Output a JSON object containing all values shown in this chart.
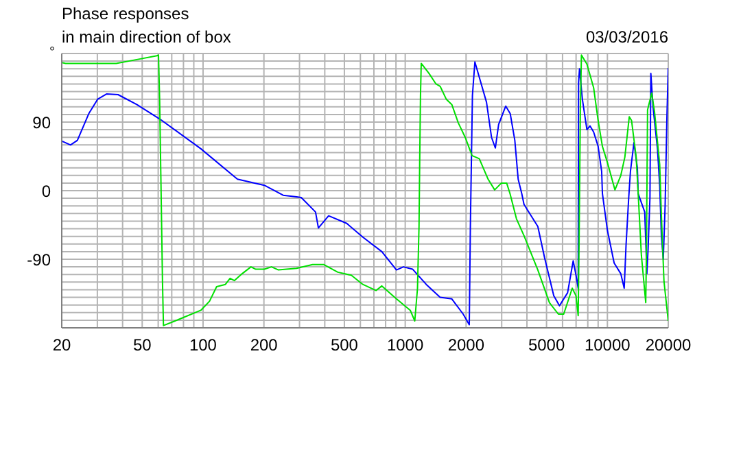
{
  "chart_data": {
    "type": "line",
    "title": "Phase responses",
    "subtitle": "in main direction of box",
    "ylabel": "°",
    "annotations": [
      "03/03/2016"
    ],
    "series": [
      {
        "color": "#0000ff",
        "x": [
          20,
          22.1,
          23.9,
          27.2,
          30.1,
          33.4,
          38,
          47,
          61.1,
          97.5,
          148,
          201,
          249,
          290,
          306,
          360,
          372,
          418,
          514,
          617,
          766,
          905,
          980,
          1087,
          1270,
          1488,
          1700,
          1935,
          2074,
          2100,
          2150,
          2211,
          2324,
          2524,
          2672,
          2791,
          2898,
          3142,
          3307,
          3484,
          3620,
          3772,
          3868,
          4528,
          4890,
          5430,
          5794,
          6355,
          6774,
          6995,
          7170,
          7200,
          7280,
          7520,
          7920,
          8200,
          8550,
          9000,
          9370,
          9450,
          10000,
          10800,
          11650,
          12110,
          12370,
          12750,
          13000,
          13530,
          14070,
          14200,
          15300,
          15680,
          15900,
          16240,
          16400,
          16830,
          17700,
          18150,
          18500,
          18900,
          19300,
          19700,
          20000
        ],
        "values": [
          65,
          60,
          66,
          101,
          120,
          127,
          126,
          113,
          94,
          55,
          15,
          7,
          -6,
          -8,
          -9,
          -28,
          -49,
          -33,
          -43,
          -61,
          -80,
          -104,
          -100,
          -103,
          -123,
          -140,
          -142,
          -162,
          -176,
          -47,
          125,
          169,
          149,
          116,
          70,
          56,
          87,
          111,
          101,
          66,
          15,
          -4,
          -18,
          -47,
          -88,
          -138,
          -151,
          -134,
          -92,
          -111,
          -128,
          142,
          160,
          120,
          80,
          85,
          77,
          58,
          25,
          -4,
          -52,
          -95,
          -109,
          -128,
          -71,
          -9,
          25,
          63,
          30,
          -4,
          -28,
          -109,
          -76,
          -9,
          154,
          109,
          54,
          6,
          -60,
          -90,
          -20,
          97,
          161
        ]
      },
      {
        "color": "#00e000",
        "x": [
          20,
          20.9,
          37.2,
          47,
          59.2,
          60.2,
          61,
          62,
          63,
          63.7,
          75.8,
          97.5,
          107.7,
          116.7,
          129,
          136,
          143,
          156,
          172.5,
          181.6,
          201,
          218,
          236,
          290,
          348,
          396,
          464,
          541,
          617,
          718,
          766,
          905,
          1059,
          1115,
          1150,
          1170,
          1180,
          1190,
          1200,
          1310,
          1420,
          1488,
          1596,
          1700,
          1830,
          1980,
          2140,
          2324,
          2570,
          2770,
          2990,
          3175,
          3300,
          3550,
          3868,
          4528,
          5170,
          5720,
          6080,
          6700,
          6995,
          7170,
          7250,
          7350,
          7440,
          7920,
          8550,
          9000,
          9450,
          10000,
          10900,
          11650,
          12200,
          12830,
          13170,
          13880,
          14200,
          14730,
          15480,
          15600,
          15800,
          16560,
          17100,
          18150,
          18500,
          19050,
          20000
        ],
        "values": [
          168,
          167,
          167,
          172,
          177,
          178,
          118,
          0,
          -119,
          -177,
          -169,
          -157,
          -145,
          -126,
          -123,
          -115,
          -118,
          -109,
          -100,
          -103,
          -103,
          -100,
          -104,
          -102,
          -97,
          -97,
          -107,
          -111,
          -123,
          -131,
          -125,
          -142,
          -157,
          -171,
          -128,
          -47,
          44,
          125,
          167,
          154,
          140,
          137,
          120,
          113,
          89,
          70,
          46,
          42,
          15,
          1,
          10,
          10,
          -4,
          -37,
          -59,
          -104,
          -147,
          -162,
          -162,
          -128,
          -138,
          -164,
          -60,
          106,
          178,
          166,
          135,
          92,
          58,
          37,
          1,
          20,
          44,
          97,
          92,
          44,
          -4,
          -85,
          -147,
          -80,
          106,
          128,
          104,
          34,
          -33,
          -119,
          -171
        ]
      }
    ],
    "log": "x",
    "grid": true,
    "legend": false,
    "line_style": "solid",
    "marker": "none",
    "xlim": [
      20,
      20000
    ],
    "xticks": [
      20,
      {
        "value": 30,
        "label": null
      },
      {
        "value": 40,
        "label": null
      },
      50,
      {
        "value": 60,
        "label": null
      },
      {
        "value": 70,
        "label": null
      },
      {
        "value": 80,
        "label": null
      },
      {
        "value": 90,
        "label": null
      },
      100,
      200,
      {
        "value": 300,
        "label": null
      },
      {
        "value": 400,
        "label": null
      },
      500,
      {
        "value": 600,
        "label": null
      },
      {
        "value": 700,
        "label": null
      },
      {
        "value": 800,
        "label": null
      },
      {
        "value": 900,
        "label": null
      },
      1000,
      2000,
      {
        "value": 3000,
        "label": null
      },
      {
        "value": 4000,
        "label": null
      },
      5000,
      {
        "value": 6000,
        "label": null
      },
      {
        "value": 7000,
        "label": null
      },
      {
        "value": 8000,
        "label": null
      },
      {
        "value": 9000,
        "label": null
      },
      10000,
      20000
    ],
    "ylim": [
      -180,
      180
    ],
    "yticks": [
      {
        "value": -180,
        "label": null
      },
      {
        "value": -170,
        "label": null
      },
      {
        "value": -160,
        "label": null
      },
      {
        "value": -150,
        "label": null
      },
      {
        "value": -140,
        "label": null
      },
      {
        "value": -130,
        "label": null
      },
      {
        "value": -120,
        "label": null
      },
      {
        "value": -110,
        "label": null
      },
      {
        "value": -100,
        "label": null
      },
      -90,
      {
        "value": -80,
        "label": null
      },
      {
        "value": -70,
        "label": null
      },
      {
        "value": -60,
        "label": null
      },
      {
        "value": -50,
        "label": null
      },
      {
        "value": -40,
        "label": null
      },
      {
        "value": -30,
        "label": null
      },
      {
        "value": -20,
        "label": null
      },
      {
        "value": -10,
        "label": null
      },
      0,
      {
        "value": 10,
        "label": null
      },
      {
        "value": 20,
        "label": null
      },
      {
        "value": 30,
        "label": null
      },
      {
        "value": 40,
        "label": null
      },
      {
        "value": 50,
        "label": null
      },
      {
        "value": 60,
        "label": null
      },
      {
        "value": 70,
        "label": null
      },
      {
        "value": 80,
        "label": null
      },
      90,
      {
        "value": 100,
        "label": null
      },
      {
        "value": 110,
        "label": null
      },
      {
        "value": 120,
        "label": null
      },
      {
        "value": 130,
        "label": null
      },
      {
        "value": 140,
        "label": null
      },
      {
        "value": 150,
        "label": null
      },
      {
        "value": 160,
        "label": null
      },
      {
        "value": 170,
        "label": null
      },
      {
        "value": 180,
        "label": null
      }
    ]
  }
}
